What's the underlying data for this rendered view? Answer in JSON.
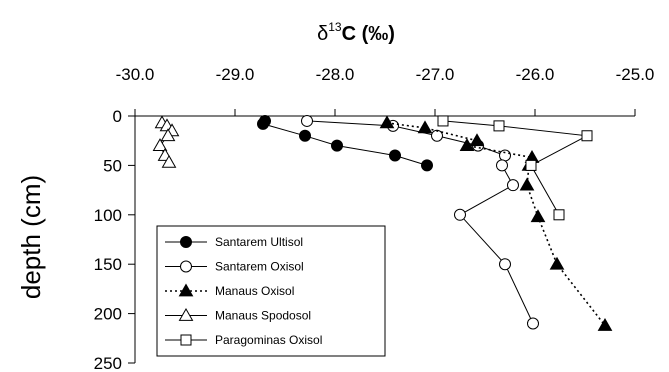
{
  "chart_data": {
    "type": "scatter",
    "title": {
      "prefix": "δ",
      "sup": "13",
      "main": "C (‰)"
    },
    "ylabel": "depth (cm)",
    "xlim": [
      -30.0,
      -25.0
    ],
    "ylim": [
      0,
      250
    ],
    "x_ticks": [
      "-30.0",
      "-29.0",
      "-28.0",
      "-27.0",
      "-26.0",
      "-25.0"
    ],
    "x_tick_values": [
      -30.0,
      -29.0,
      -28.0,
      -27.0,
      -26.0,
      -25.0
    ],
    "y_ticks": [
      "0",
      "50",
      "100",
      "150",
      "200",
      "250"
    ],
    "y_tick_values": [
      0,
      50,
      100,
      150,
      200,
      250
    ],
    "grid": false,
    "x_axis_position": "top",
    "legend_position": "bottom-left",
    "series": [
      {
        "name": "Santarem Ultisol",
        "marker": "circle-filled",
        "line": "solid",
        "points": [
          [
            -28.7,
            5
          ],
          [
            -28.72,
            8
          ],
          [
            -28.3,
            20
          ],
          [
            -27.98,
            30
          ],
          [
            -27.4,
            40
          ],
          [
            -27.08,
            50
          ]
        ]
      },
      {
        "name": "Santarem Oxisol",
        "marker": "circle-open",
        "line": "solid",
        "points": [
          [
            -28.28,
            5
          ],
          [
            -27.42,
            10
          ],
          [
            -26.98,
            20
          ],
          [
            -26.57,
            30
          ],
          [
            -26.3,
            40
          ],
          [
            -26.33,
            50
          ],
          [
            -26.22,
            70
          ],
          [
            -26.75,
            100
          ],
          [
            -26.3,
            150
          ],
          [
            -26.02,
            210
          ]
        ]
      },
      {
        "name": "Manaus Oxisol",
        "marker": "triangle-filled",
        "line": "dotted",
        "points": [
          [
            -27.48,
            7
          ],
          [
            -27.1,
            12
          ],
          [
            -26.58,
            25
          ],
          [
            -26.68,
            30
          ],
          [
            -26.03,
            42
          ],
          [
            -26.06,
            50
          ],
          [
            -26.08,
            70
          ],
          [
            -25.97,
            102
          ],
          [
            -25.78,
            150
          ],
          [
            -25.3,
            212
          ]
        ]
      },
      {
        "name": "Manaus Spodosol",
        "marker": "triangle-open",
        "line": "solid",
        "points": [
          [
            -29.73,
            7
          ],
          [
            -29.68,
            10
          ],
          [
            -29.63,
            15
          ],
          [
            -29.67,
            20
          ],
          [
            -29.75,
            30
          ],
          [
            -29.7,
            40
          ],
          [
            -29.66,
            47
          ]
        ]
      },
      {
        "name": "Paragominas Oxisol",
        "marker": "square-open",
        "line": "solid",
        "points": [
          [
            -26.92,
            5
          ],
          [
            -26.36,
            10
          ],
          [
            -25.48,
            20
          ],
          [
            -26.04,
            50
          ],
          [
            -25.76,
            100
          ]
        ]
      }
    ]
  }
}
